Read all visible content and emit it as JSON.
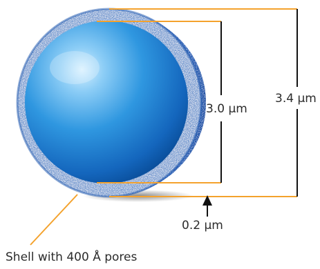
{
  "colors": {
    "leader_line": "#f4a22c",
    "dimension_line": "#111111",
    "core_light": "#bfe6fb",
    "core_mid": "#2f97e0",
    "core_dark": "#0a4f9c",
    "shell_dark": "#0e3f92",
    "shell_light": "#dbe8f5",
    "text": "#2b2b2b"
  },
  "labels": {
    "core_diameter": "3.0 µm",
    "particle_diameter": "3.4 µm",
    "shell_thickness": "0.2 µm",
    "shell_caption": "Shell with 400 Å pores"
  }
}
